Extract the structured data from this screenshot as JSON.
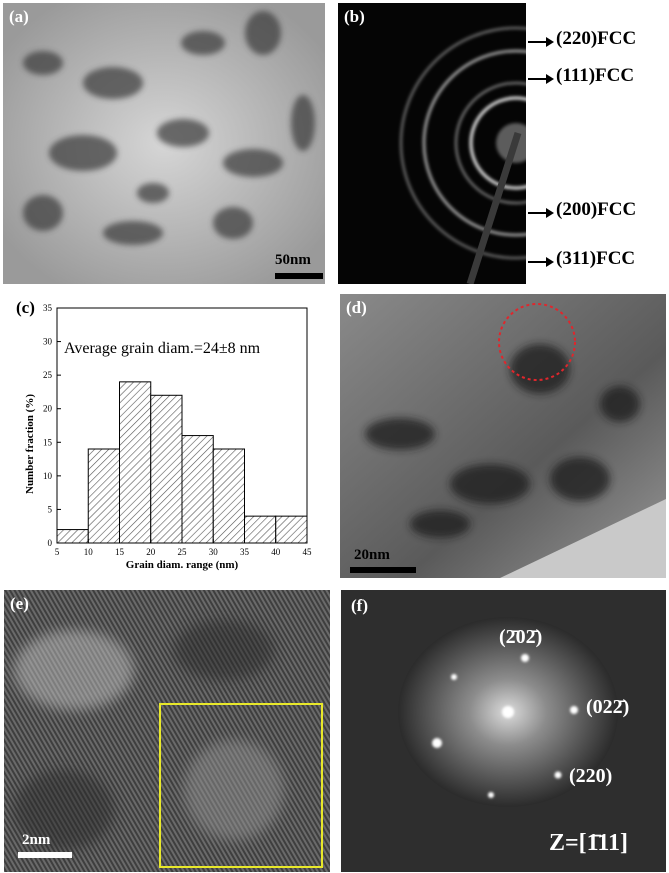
{
  "panels": {
    "a": {
      "label": "(a)",
      "scale": "50nm"
    },
    "b": {
      "label": "(b)",
      "rings": [
        "(220)FCC",
        "(111)FCC",
        "(200)FCC",
        "(311)FCC"
      ]
    },
    "c": {
      "label": "(c)"
    },
    "d": {
      "label": "(d)",
      "scale": "20nm"
    },
    "e": {
      "label": "(e)",
      "scale": "2nm"
    },
    "f": {
      "label": "(f)",
      "spot1": "(2̄02̄)",
      "spot2": "(022̄)",
      "spot3": "(220)",
      "zone": "Z=[1̄11]"
    }
  },
  "chart_data": {
    "type": "bar",
    "annotation": "Average grain diam.=24±8 nm",
    "xlabel": "Grain diam. range (nm)",
    "ylabel": "Number fraction (%)",
    "bin_edges": [
      5,
      10,
      15,
      20,
      25,
      30,
      35,
      40,
      45
    ],
    "values": [
      2,
      14,
      24,
      22,
      16,
      14,
      4,
      4
    ],
    "xticks": [
      5,
      10,
      15,
      20,
      25,
      30,
      35,
      40,
      45
    ],
    "yticks": [
      0,
      5,
      10,
      15,
      20,
      25,
      30,
      35
    ],
    "xlim": [
      5,
      45
    ],
    "ylim": [
      0,
      35
    ],
    "grid": false,
    "bar_fill": "hatched"
  },
  "colors": {
    "circle": "#e0262c",
    "box": "#e8e82a"
  }
}
